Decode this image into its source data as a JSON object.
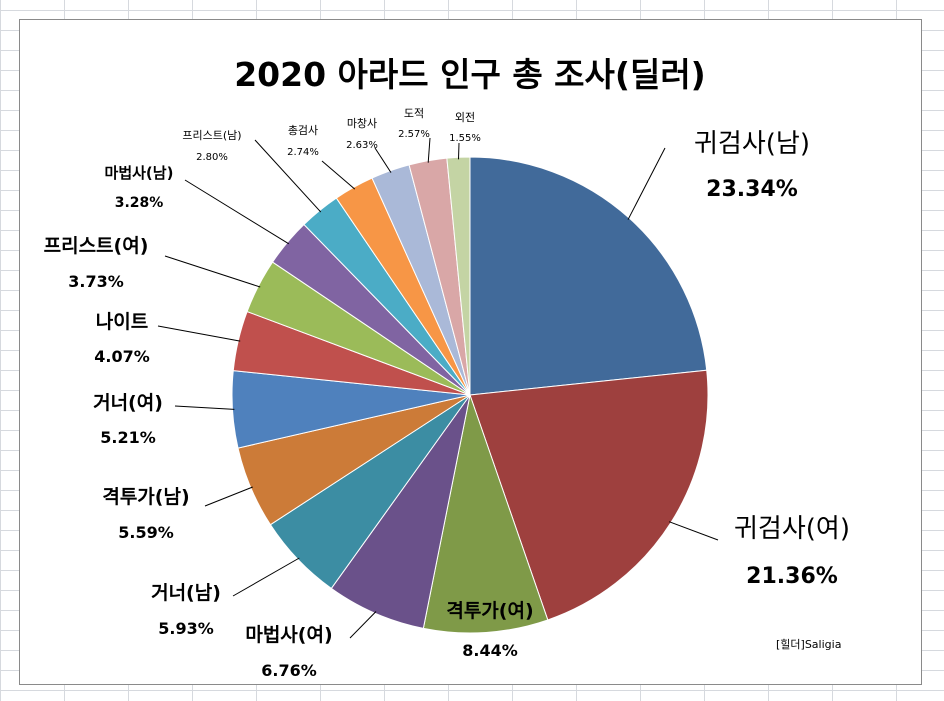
{
  "chart_data": {
    "type": "pie",
    "title": "2020 아라드 인구 총 조사(딜러)",
    "watermark": "[힐더]Saligia",
    "start_angle_deg": 0,
    "direction": "clockwise",
    "slices": [
      {
        "label": "귀검사(남)",
        "value": 23.34,
        "pct_text": "23.34%",
        "color": "#416A9A"
      },
      {
        "label": "귀검사(여)",
        "value": 21.36,
        "pct_text": "21.36%",
        "color": "#9E403E"
      },
      {
        "label": "격투가(여)",
        "value": 8.44,
        "pct_text": "8.44%",
        "color": "#7F9A48"
      },
      {
        "label": "마법사(여)",
        "value": 6.76,
        "pct_text": "6.76%",
        "color": "#6A518A"
      },
      {
        "label": "거너(남)",
        "value": 5.93,
        "pct_text": "5.93%",
        "color": "#3C8DA3"
      },
      {
        "label": "격투가(남)",
        "value": 5.59,
        "pct_text": "5.59%",
        "color": "#CC7B38"
      },
      {
        "label": "거너(여)",
        "value": 5.21,
        "pct_text": "5.21%",
        "color": "#4F81BD"
      },
      {
        "label": "나이트",
        "value": 4.07,
        "pct_text": "4.07%",
        "color": "#C0504D"
      },
      {
        "label": "프리스트(여)",
        "value": 3.73,
        "pct_text": "3.73%",
        "color": "#9BBB59"
      },
      {
        "label": "마법사(남)",
        "value": 3.28,
        "pct_text": "3.28%",
        "color": "#8064A2"
      },
      {
        "label": "프리스트(남)",
        "value": 2.8,
        "pct_text": "2.80%",
        "color": "#4BACC6"
      },
      {
        "label": "총검사",
        "value": 2.74,
        "pct_text": "2.74%",
        "color": "#F79646"
      },
      {
        "label": "마창사",
        "value": 2.63,
        "pct_text": "2.63%",
        "color": "#AAB9D8"
      },
      {
        "label": "도적",
        "value": 2.57,
        "pct_text": "2.57%",
        "color": "#D9A7A7"
      },
      {
        "label": "외전",
        "value": 1.55,
        "pct_text": "1.55%",
        "color": "#C4D4A4"
      }
    ]
  }
}
